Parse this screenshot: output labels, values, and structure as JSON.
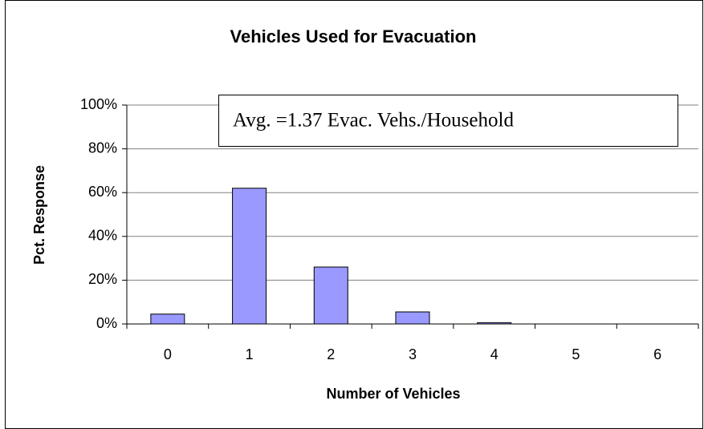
{
  "chart_data": {
    "type": "bar",
    "title": "Vehicles Used for Evacuation",
    "x_label": "Number of Vehicles",
    "y_label": "Pct. Response",
    "annotation": "Avg. =1.37 Evac. Vehs./Household",
    "categories": [
      "0",
      "1",
      "2",
      "3",
      "4",
      "5",
      "6"
    ],
    "values": [
      4.5,
      62,
      26,
      5.5,
      0.6,
      0,
      0
    ],
    "color": "#9999ff",
    "ylim": [
      0,
      100
    ],
    "yticks": [
      {
        "value": 0,
        "label": "0%"
      },
      {
        "value": 20,
        "label": "20%"
      },
      {
        "value": 40,
        "label": "40%"
      },
      {
        "value": 60,
        "label": "60%"
      },
      {
        "value": 80,
        "label": "80%"
      },
      {
        "value": 100,
        "label": "100%"
      }
    ],
    "grid": true
  }
}
